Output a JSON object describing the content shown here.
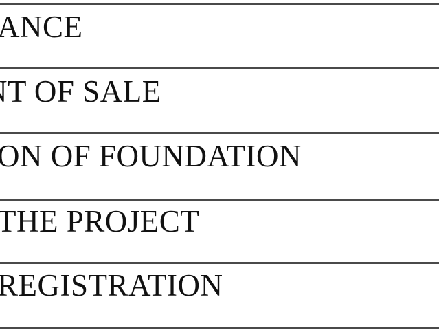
{
  "table": {
    "rows": [
      {
        "text": "ANCE"
      },
      {
        "text": "NT OF SALE"
      },
      {
        "text": "ON OF FOUNDATION"
      },
      {
        "text": "THE PROJECT"
      },
      {
        "text": "REGISTRATION"
      }
    ]
  }
}
